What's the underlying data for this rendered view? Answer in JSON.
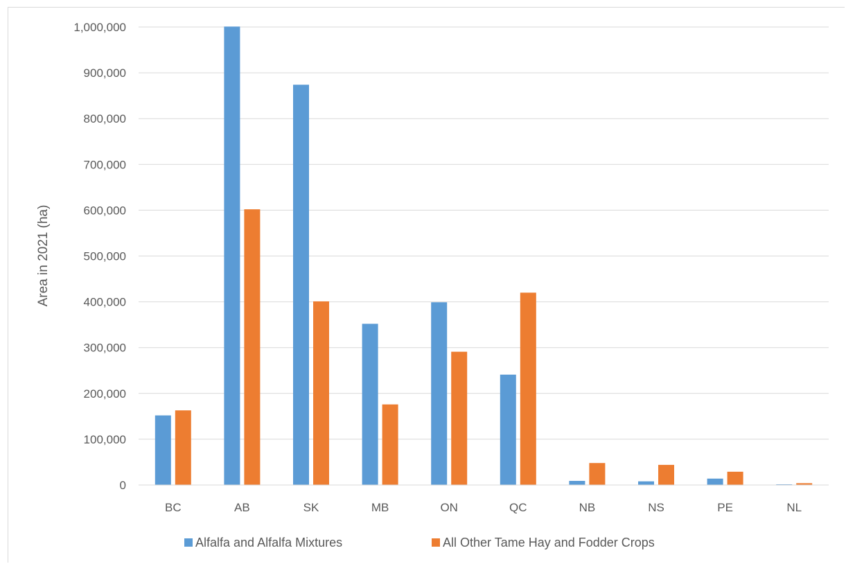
{
  "chart_data": {
    "type": "bar",
    "ylabel": "Area in 2021 (ha)",
    "xlabel": "",
    "title": "",
    "categories": [
      "BC",
      "AB",
      "SK",
      "MB",
      "ON",
      "QC",
      "NB",
      "NS",
      "PE",
      "NL"
    ],
    "ylim": [
      0,
      1000000
    ],
    "yticks": [
      0,
      100000,
      200000,
      300000,
      400000,
      500000,
      600000,
      700000,
      800000,
      900000,
      1000000
    ],
    "ytick_labels": [
      "0",
      "100,000",
      "200,000",
      "300,000",
      "400,000",
      "500,000",
      "600,000",
      "700,000",
      "800,000",
      "900,000",
      "1,000,000"
    ],
    "grid": true,
    "legend_position": "bottom",
    "series": [
      {
        "name": "Alfalfa and Alfalfa Mixtures",
        "color": "#5b9bd5",
        "values": [
          152000,
          1001000,
          874000,
          352000,
          399000,
          241000,
          9000,
          8000,
          14000,
          1500
        ]
      },
      {
        "name": "All Other Tame Hay and Fodder Crops",
        "color": "#ed7d31",
        "values": [
          163000,
          602000,
          401000,
          176000,
          291000,
          420000,
          48000,
          44000,
          29000,
          4000
        ]
      }
    ]
  }
}
